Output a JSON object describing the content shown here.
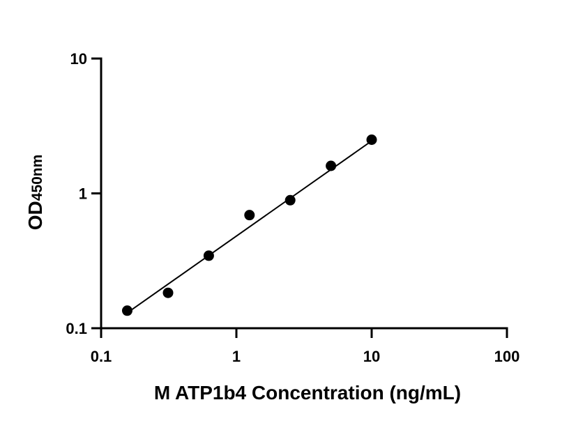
{
  "chart_data": {
    "type": "scatter",
    "title": "",
    "xlabel": "M ATP1b4 Concentration (ng/mL)",
    "ylabel_main": "OD",
    "ylabel_sub": "450nm",
    "xscale": "log",
    "yscale": "log",
    "xlim": [
      0.1,
      100
    ],
    "ylim": [
      0.1,
      10
    ],
    "x_ticks": [
      "0.1",
      "1",
      "10",
      "100"
    ],
    "y_ticks": [
      "0.1",
      "1",
      "10"
    ],
    "grid": false,
    "legend": "none",
    "series": [
      {
        "x": [
          0.156,
          0.3125,
          0.625,
          1.25,
          2.5,
          5,
          10
        ],
        "y": [
          0.135,
          0.183,
          0.345,
          0.69,
          0.89,
          1.6,
          2.5
        ]
      }
    ],
    "fit_line": {
      "x": [
        0.156,
        10
      ],
      "y": [
        0.13,
        2.45
      ]
    },
    "colors": {
      "axis": "#000000",
      "marker": "#000000",
      "line": "#000000"
    }
  }
}
